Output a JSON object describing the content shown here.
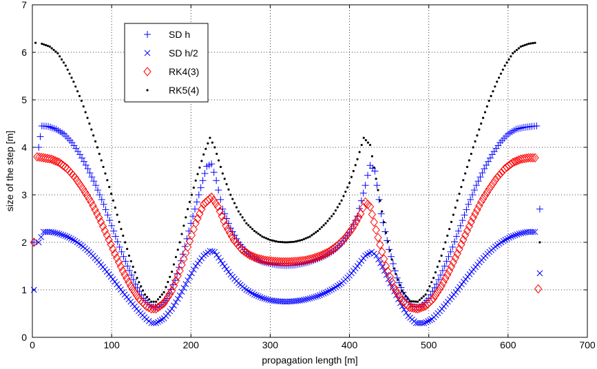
{
  "chart_data": {
    "type": "scatter",
    "title": "",
    "xlabel": "propagation length [m]",
    "ylabel": "size of the step [m]",
    "xlim": [
      0,
      700
    ],
    "ylim": [
      0,
      7
    ],
    "xticks": [
      "0",
      "100",
      "200",
      "300",
      "400",
      "500",
      "600",
      "700"
    ],
    "yticks": [
      "0",
      "1",
      "2",
      "3",
      "4",
      "5",
      "6",
      "7"
    ],
    "grid": true,
    "legend_position": "top-left",
    "series": [
      {
        "name": "SD h",
        "marker": "plus",
        "color": "#0000ff",
        "points": [
          [
            2,
            2.0
          ],
          [
            8,
            4.0
          ],
          [
            12,
            4.45
          ],
          [
            20,
            4.44
          ],
          [
            30,
            4.38
          ],
          [
            40,
            4.28
          ],
          [
            50,
            4.1
          ],
          [
            60,
            3.85
          ],
          [
            70,
            3.55
          ],
          [
            80,
            3.2
          ],
          [
            90,
            2.8
          ],
          [
            100,
            2.35
          ],
          [
            110,
            1.9
          ],
          [
            120,
            1.5
          ],
          [
            130,
            1.12
          ],
          [
            140,
            0.82
          ],
          [
            150,
            0.64
          ],
          [
            160,
            0.64
          ],
          [
            170,
            0.82
          ],
          [
            180,
            1.2
          ],
          [
            190,
            1.75
          ],
          [
            200,
            2.4
          ],
          [
            210,
            3.0
          ],
          [
            220,
            3.6
          ],
          [
            226,
            3.65
          ],
          [
            232,
            3.3
          ],
          [
            240,
            2.7
          ],
          [
            250,
            2.3
          ],
          [
            260,
            2.0
          ],
          [
            270,
            1.8
          ],
          [
            280,
            1.67
          ],
          [
            290,
            1.59
          ],
          [
            300,
            1.55
          ],
          [
            310,
            1.52
          ],
          [
            320,
            1.51
          ],
          [
            330,
            1.52
          ],
          [
            340,
            1.55
          ],
          [
            350,
            1.59
          ],
          [
            360,
            1.65
          ],
          [
            370,
            1.72
          ],
          [
            380,
            1.82
          ],
          [
            390,
            1.97
          ],
          [
            400,
            2.2
          ],
          [
            410,
            2.55
          ],
          [
            420,
            3.2
          ],
          [
            426,
            3.62
          ],
          [
            432,
            3.5
          ],
          [
            440,
            2.6
          ],
          [
            450,
            1.85
          ],
          [
            460,
            1.25
          ],
          [
            470,
            0.85
          ],
          [
            480,
            0.64
          ],
          [
            490,
            0.64
          ],
          [
            500,
            0.82
          ],
          [
            510,
            1.12
          ],
          [
            520,
            1.5
          ],
          [
            530,
            1.9
          ],
          [
            540,
            2.35
          ],
          [
            550,
            2.8
          ],
          [
            560,
            3.2
          ],
          [
            570,
            3.55
          ],
          [
            580,
            3.85
          ],
          [
            590,
            4.1
          ],
          [
            600,
            4.28
          ],
          [
            610,
            4.38
          ],
          [
            620,
            4.42
          ],
          [
            630,
            4.44
          ],
          [
            636,
            4.45
          ],
          [
            640,
            2.7
          ]
        ]
      },
      {
        "name": "SD h/2",
        "marker": "x",
        "color": "#0000ff",
        "points": [
          [
            2,
            1.0
          ],
          [
            8,
            2.0
          ],
          [
            14,
            2.22
          ],
          [
            24,
            2.22
          ],
          [
            34,
            2.18
          ],
          [
            44,
            2.12
          ],
          [
            54,
            2.03
          ],
          [
            64,
            1.91
          ],
          [
            74,
            1.76
          ],
          [
            84,
            1.58
          ],
          [
            94,
            1.38
          ],
          [
            104,
            1.17
          ],
          [
            114,
            0.95
          ],
          [
            124,
            0.75
          ],
          [
            134,
            0.55
          ],
          [
            144,
            0.38
          ],
          [
            150,
            0.3
          ],
          [
            156,
            0.3
          ],
          [
            166,
            0.4
          ],
          [
            176,
            0.6
          ],
          [
            186,
            0.88
          ],
          [
            196,
            1.2
          ],
          [
            206,
            1.5
          ],
          [
            216,
            1.72
          ],
          [
            224,
            1.82
          ],
          [
            230,
            1.8
          ],
          [
            240,
            1.55
          ],
          [
            250,
            1.32
          ],
          [
            260,
            1.14
          ],
          [
            270,
            1.0
          ],
          [
            280,
            0.9
          ],
          [
            290,
            0.83
          ],
          [
            300,
            0.78
          ],
          [
            310,
            0.76
          ],
          [
            320,
            0.75
          ],
          [
            330,
            0.76
          ],
          [
            340,
            0.78
          ],
          [
            350,
            0.82
          ],
          [
            360,
            0.87
          ],
          [
            370,
            0.94
          ],
          [
            380,
            1.03
          ],
          [
            390,
            1.14
          ],
          [
            400,
            1.3
          ],
          [
            410,
            1.5
          ],
          [
            420,
            1.72
          ],
          [
            428,
            1.8
          ],
          [
            434,
            1.72
          ],
          [
            444,
            1.4
          ],
          [
            454,
            1.05
          ],
          [
            464,
            0.72
          ],
          [
            474,
            0.45
          ],
          [
            484,
            0.3
          ],
          [
            494,
            0.3
          ],
          [
            504,
            0.38
          ],
          [
            514,
            0.55
          ],
          [
            524,
            0.75
          ],
          [
            534,
            0.95
          ],
          [
            544,
            1.17
          ],
          [
            554,
            1.38
          ],
          [
            564,
            1.58
          ],
          [
            574,
            1.76
          ],
          [
            584,
            1.91
          ],
          [
            594,
            2.03
          ],
          [
            604,
            2.12
          ],
          [
            614,
            2.18
          ],
          [
            624,
            2.22
          ],
          [
            634,
            2.22
          ],
          [
            640,
            1.35
          ]
        ]
      },
      {
        "name": "RK4(3)",
        "marker": "diamond",
        "color": "#ff0000",
        "points": [
          [
            2,
            2.0
          ],
          [
            6,
            3.8
          ],
          [
            14,
            3.78
          ],
          [
            24,
            3.75
          ],
          [
            34,
            3.68
          ],
          [
            44,
            3.55
          ],
          [
            54,
            3.36
          ],
          [
            64,
            3.12
          ],
          [
            74,
            2.85
          ],
          [
            84,
            2.52
          ],
          [
            94,
            2.15
          ],
          [
            104,
            1.76
          ],
          [
            114,
            1.4
          ],
          [
            124,
            1.08
          ],
          [
            134,
            0.82
          ],
          [
            144,
            0.65
          ],
          [
            150,
            0.6
          ],
          [
            156,
            0.6
          ],
          [
            166,
            0.72
          ],
          [
            176,
            0.98
          ],
          [
            186,
            1.4
          ],
          [
            196,
            1.9
          ],
          [
            206,
            2.4
          ],
          [
            216,
            2.8
          ],
          [
            226,
            2.95
          ],
          [
            234,
            2.75
          ],
          [
            244,
            2.35
          ],
          [
            254,
            2.05
          ],
          [
            264,
            1.85
          ],
          [
            274,
            1.73
          ],
          [
            284,
            1.66
          ],
          [
            294,
            1.62
          ],
          [
            304,
            1.6
          ],
          [
            314,
            1.59
          ],
          [
            324,
            1.59
          ],
          [
            334,
            1.6
          ],
          [
            344,
            1.62
          ],
          [
            354,
            1.66
          ],
          [
            364,
            1.72
          ],
          [
            374,
            1.8
          ],
          [
            384,
            1.92
          ],
          [
            394,
            2.08
          ],
          [
            404,
            2.3
          ],
          [
            414,
            2.6
          ],
          [
            420,
            2.85
          ],
          [
            426,
            2.75
          ],
          [
            436,
            2.1
          ],
          [
            446,
            1.5
          ],
          [
            456,
            1.05
          ],
          [
            466,
            0.78
          ],
          [
            476,
            0.63
          ],
          [
            486,
            0.6
          ],
          [
            496,
            0.66
          ],
          [
            506,
            0.82
          ],
          [
            516,
            1.08
          ],
          [
            526,
            1.4
          ],
          [
            536,
            1.76
          ],
          [
            546,
            2.15
          ],
          [
            556,
            2.52
          ],
          [
            566,
            2.85
          ],
          [
            576,
            3.12
          ],
          [
            586,
            3.36
          ],
          [
            596,
            3.55
          ],
          [
            606,
            3.68
          ],
          [
            616,
            3.75
          ],
          [
            626,
            3.78
          ],
          [
            634,
            3.78
          ],
          [
            638,
            1.02
          ]
        ]
      },
      {
        "name": "RK5(4)",
        "marker": "dot",
        "color": "#000000",
        "points": [
          [
            4,
            6.2
          ],
          [
            12,
            6.18
          ],
          [
            22,
            6.12
          ],
          [
            32,
            5.98
          ],
          [
            42,
            5.72
          ],
          [
            52,
            5.38
          ],
          [
            62,
            4.98
          ],
          [
            72,
            4.5
          ],
          [
            82,
            4.0
          ],
          [
            92,
            3.45
          ],
          [
            102,
            2.88
          ],
          [
            112,
            2.28
          ],
          [
            122,
            1.72
          ],
          [
            132,
            1.25
          ],
          [
            142,
            0.9
          ],
          [
            150,
            0.75
          ],
          [
            156,
            0.75
          ],
          [
            166,
            0.95
          ],
          [
            176,
            1.38
          ],
          [
            186,
            2.0
          ],
          [
            196,
            2.7
          ],
          [
            206,
            3.3
          ],
          [
            216,
            3.85
          ],
          [
            224,
            4.2
          ],
          [
            230,
            4.0
          ],
          [
            240,
            3.45
          ],
          [
            250,
            3.0
          ],
          [
            260,
            2.65
          ],
          [
            270,
            2.4
          ],
          [
            280,
            2.24
          ],
          [
            290,
            2.12
          ],
          [
            300,
            2.05
          ],
          [
            310,
            2.01
          ],
          [
            320,
            2.0
          ],
          [
            330,
            2.01
          ],
          [
            340,
            2.05
          ],
          [
            350,
            2.12
          ],
          [
            360,
            2.24
          ],
          [
            370,
            2.4
          ],
          [
            380,
            2.6
          ],
          [
            390,
            2.88
          ],
          [
            400,
            3.25
          ],
          [
            410,
            3.75
          ],
          [
            418,
            4.2
          ],
          [
            426,
            4.05
          ],
          [
            436,
            3.1
          ],
          [
            446,
            2.2
          ],
          [
            456,
            1.45
          ],
          [
            466,
            0.98
          ],
          [
            476,
            0.76
          ],
          [
            486,
            0.75
          ],
          [
            496,
            0.9
          ],
          [
            506,
            1.25
          ],
          [
            516,
            1.72
          ],
          [
            526,
            2.28
          ],
          [
            536,
            2.88
          ],
          [
            546,
            3.45
          ],
          [
            556,
            4.0
          ],
          [
            566,
            4.5
          ],
          [
            576,
            4.98
          ],
          [
            586,
            5.38
          ],
          [
            596,
            5.72
          ],
          [
            606,
            5.98
          ],
          [
            616,
            6.12
          ],
          [
            626,
            6.18
          ],
          [
            634,
            6.2
          ],
          [
            640,
            2.0
          ]
        ]
      }
    ]
  }
}
